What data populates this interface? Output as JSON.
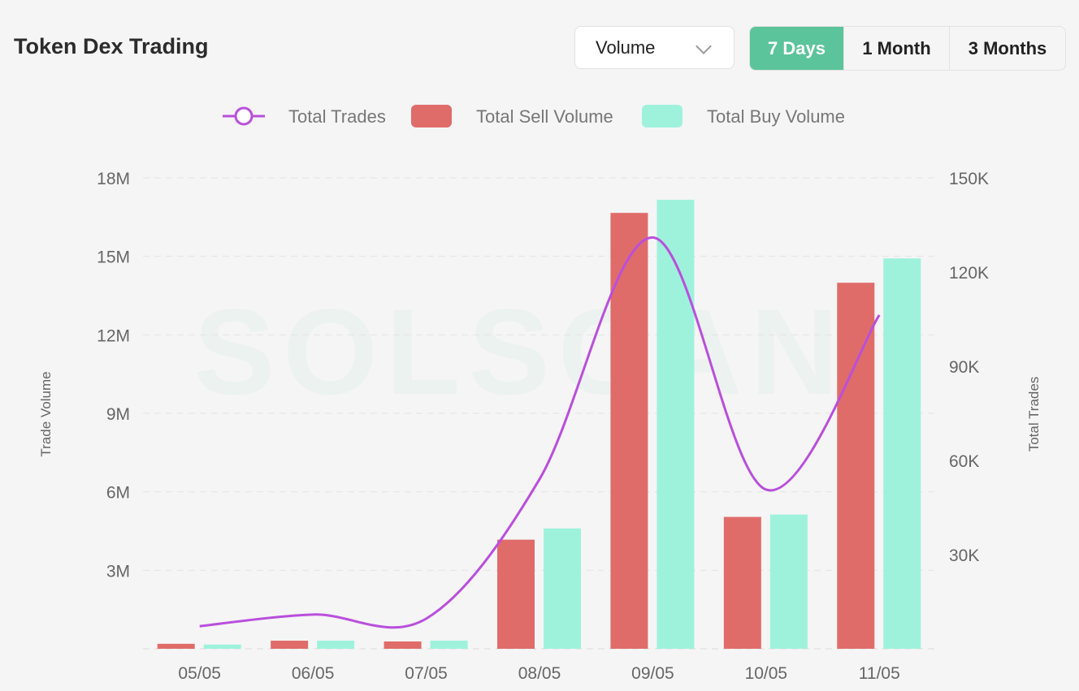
{
  "header": {
    "title": "Token Dex Trading",
    "metric_select": "Volume",
    "ranges": [
      "7 Days",
      "1 Month",
      "3 Months"
    ],
    "active_range": "7 Days"
  },
  "watermark": "SOLSCAN",
  "colors": {
    "trades": "#b94fdc",
    "sell": "#e06c6a",
    "buy": "#9ef2dc",
    "active": "#5cc49a"
  },
  "chart_data": {
    "type": "bar",
    "categories": [
      "05/05",
      "06/05",
      "07/05",
      "08/05",
      "09/05",
      "10/05",
      "11/05"
    ],
    "series": [
      {
        "name": "Total Trades",
        "type": "line",
        "axis": "right",
        "values": [
          7200,
          10900,
          9600,
          54000,
          131000,
          50700,
          106300
        ]
      },
      {
        "name": "Total Sell Volume",
        "type": "bar",
        "axis": "left",
        "values": [
          190000,
          310000,
          280000,
          4170000,
          16660000,
          5040000,
          13990000
        ]
      },
      {
        "name": "Total Buy Volume",
        "type": "bar",
        "axis": "left",
        "values": [
          160000,
          310000,
          310000,
          4600000,
          17160000,
          5130000,
          14920000
        ]
      }
    ],
    "ylabel": "Trade Volume",
    "y2label": "Total Trades",
    "ylim": [
      0,
      18000000
    ],
    "y2lim": [
      0,
      150000
    ],
    "yticks": [
      "3M",
      "6M",
      "9M",
      "12M",
      "15M",
      "18M"
    ],
    "y2ticks": [
      "30K",
      "60K",
      "90K",
      "120K",
      "150K"
    ],
    "legend": "top-center",
    "grid": true
  }
}
